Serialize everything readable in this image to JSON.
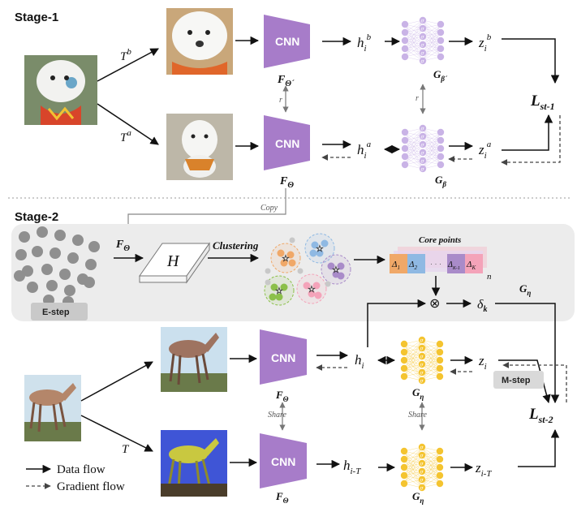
{
  "stage1": {
    "title": "Stage-1",
    "t_b_base": "T",
    "t_b_sup": "b",
    "t_a_base": "T",
    "t_a_sup": "a",
    "cnn_label": "CNN",
    "f_theta_prime": "F",
    "f_theta_prime_sub": "Θ´",
    "f_theta": "F",
    "f_theta_sub": "Θ",
    "h_b": "h",
    "h_b_sub": "i",
    "h_b_sup": "b",
    "h_a": "h",
    "h_a_sub": "i",
    "h_a_sup": "a",
    "z_b": "z",
    "z_b_sub": "i",
    "z_b_sup": "b",
    "z_a": "z",
    "z_a_sub": "i",
    "z_a_sup": "a",
    "g_beta_prime": "G",
    "g_beta_prime_sub": "β´",
    "g_beta": "G",
    "g_beta_sub": "β",
    "r_label": "r",
    "loss": "L",
    "loss_sub": "st-1",
    "copy_label": "Copy"
  },
  "stage2": {
    "title": "Stage-2",
    "f_theta": "F",
    "f_theta_sub": "Θ",
    "h_label": "H",
    "clustering_label": "Clustering",
    "core_points_label": "Core points",
    "deltas": [
      "Δ",
      "Δ",
      "Δ",
      "Δ"
    ],
    "delta_subs": [
      "1",
      "2",
      "K-1",
      "K"
    ],
    "n_label": "n",
    "delta_k": "δ",
    "delta_k_sub": "k",
    "g_eta": "G",
    "g_eta_sub": "η",
    "estep_label": "E-step",
    "mstep_label": "M-step",
    "h_i": "h",
    "h_i_sub": "i",
    "h_iT": "h",
    "h_iT_sub": "i-T",
    "z_i": "z",
    "z_i_sub": "i",
    "z_iT": "z",
    "z_iT_sub": "i-T",
    "t_label": "T",
    "share_label": "Share",
    "cnn_label": "CNN",
    "loss": "L",
    "loss_sub": "st-2",
    "otimes": "⊗"
  },
  "legend": {
    "data_flow": "Data flow",
    "gradient_flow": "Gradient flow"
  },
  "colors": {
    "cnn_purple": "#a77cc9",
    "mlp_lavender": "#c9b3e6",
    "mlp_yellow": "#f4c430",
    "estep_panel": "#ececec",
    "delta_orange": "#f0a868",
    "delta_blue": "#8fb9e3",
    "delta_purple": "#a98bc9",
    "delta_pink": "#f4a3b9"
  }
}
